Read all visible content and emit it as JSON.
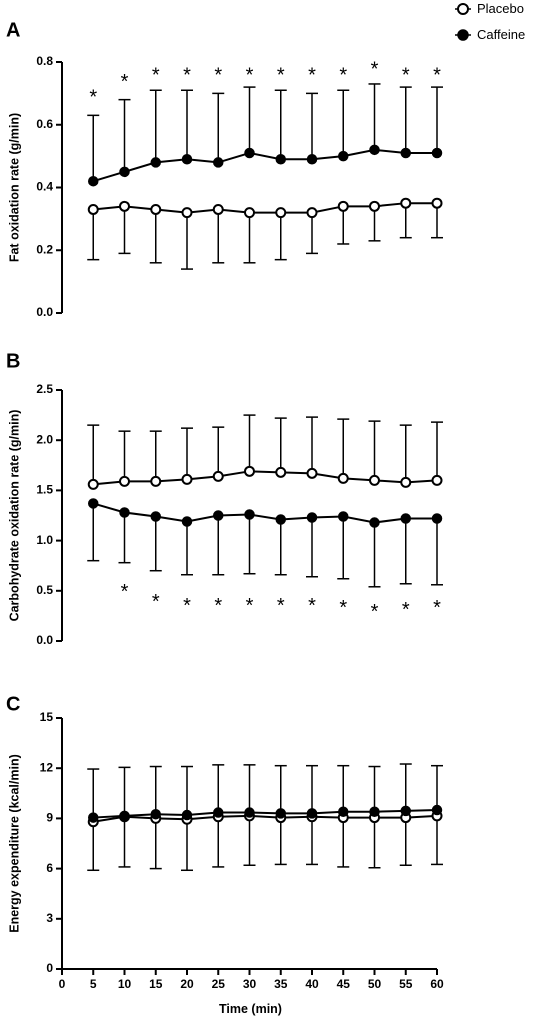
{
  "legend": [
    {
      "name": "Placebo",
      "marker": "open-circle"
    },
    {
      "name": "Caffeine",
      "marker": "filled-circle"
    }
  ],
  "colors": {
    "ink": "#000000",
    "background": "#ffffff",
    "open_marker_fill": "#ffffff"
  },
  "significance_marker": "*",
  "chart_data": [
    {
      "panel": "A",
      "type": "line",
      "ylabel": "Fat oxidation rate (g/min)",
      "xlabel": "",
      "ylim": [
        0,
        0.8
      ],
      "yticks": [
        0.0,
        0.2,
        0.4,
        0.6,
        0.8
      ],
      "ytick_labels": [
        "0.0",
        "0.2",
        "0.4",
        "0.6",
        "0.8"
      ],
      "x": [
        5,
        10,
        15,
        20,
        25,
        30,
        35,
        40,
        45,
        50,
        55,
        60
      ],
      "series": [
        {
          "name": "Placebo",
          "marker": "open-circle",
          "values": [
            0.33,
            0.34,
            0.33,
            0.32,
            0.33,
            0.32,
            0.32,
            0.32,
            0.34,
            0.34,
            0.35,
            0.35
          ],
          "error_lower": [
            0.17,
            0.19,
            0.16,
            0.14,
            0.16,
            0.16,
            0.17,
            0.19,
            0.22,
            0.23,
            0.24,
            0.24
          ]
        },
        {
          "name": "Caffeine",
          "marker": "filled-circle",
          "values": [
            0.42,
            0.45,
            0.48,
            0.49,
            0.48,
            0.51,
            0.49,
            0.49,
            0.5,
            0.52,
            0.51,
            0.51
          ],
          "error_upper": [
            0.63,
            0.68,
            0.71,
            0.71,
            0.7,
            0.72,
            0.71,
            0.7,
            0.71,
            0.73,
            0.72,
            0.72
          ]
        }
      ],
      "significance": {
        "x": [
          5,
          10,
          15,
          20,
          25,
          30,
          35,
          40,
          45,
          50,
          55,
          60
        ],
        "position": "above",
        "at": [
          0.69,
          0.74,
          0.76,
          0.76,
          0.76,
          0.76,
          0.76,
          0.76,
          0.76,
          0.78,
          0.76,
          0.76
        ]
      }
    },
    {
      "panel": "B",
      "type": "line",
      "ylabel": "Carbohydrate oxidation rate (g/min)",
      "xlabel": "",
      "ylim": [
        0,
        2.5
      ],
      "yticks": [
        0.0,
        0.5,
        1.0,
        1.5,
        2.0,
        2.5
      ],
      "ytick_labels": [
        "0.0",
        "0.5",
        "1.0",
        "1.5",
        "2.0",
        "2.5"
      ],
      "x": [
        5,
        10,
        15,
        20,
        25,
        30,
        35,
        40,
        45,
        50,
        55,
        60
      ],
      "series": [
        {
          "name": "Placebo",
          "marker": "open-circle",
          "values": [
            1.56,
            1.59,
            1.59,
            1.61,
            1.64,
            1.69,
            1.68,
            1.67,
            1.62,
            1.6,
            1.58,
            1.6
          ],
          "error_upper": [
            2.15,
            2.09,
            2.09,
            2.12,
            2.13,
            2.25,
            2.22,
            2.23,
            2.21,
            2.19,
            2.15,
            2.18
          ]
        },
        {
          "name": "Caffeine",
          "marker": "filled-circle",
          "values": [
            1.37,
            1.28,
            1.24,
            1.19,
            1.25,
            1.26,
            1.21,
            1.23,
            1.24,
            1.18,
            1.22,
            1.22
          ],
          "error_lower": [
            0.8,
            0.78,
            0.7,
            0.66,
            0.66,
            0.67,
            0.66,
            0.64,
            0.62,
            0.54,
            0.57,
            0.56
          ]
        }
      ],
      "significance": {
        "x": [
          10,
          15,
          20,
          25,
          30,
          35,
          40,
          45,
          50,
          55,
          60
        ],
        "position": "below",
        "at": [
          0.5,
          0.4,
          0.36,
          0.36,
          0.36,
          0.36,
          0.36,
          0.34,
          0.3,
          0.32,
          0.34
        ]
      }
    },
    {
      "panel": "C",
      "type": "line",
      "ylabel": "Energy expenditure (kcal/min)",
      "xlabel": "Time (min)",
      "ylim": [
        0,
        15
      ],
      "yticks": [
        0,
        3,
        6,
        9,
        12,
        15
      ],
      "ytick_labels": [
        "0",
        "3",
        "6",
        "9",
        "12",
        "15"
      ],
      "xlim": [
        0,
        60
      ],
      "xticks": [
        0,
        5,
        10,
        15,
        20,
        25,
        30,
        35,
        40,
        45,
        50,
        55,
        60
      ],
      "xtick_labels": [
        "0",
        "5",
        "10",
        "15",
        "20",
        "25",
        "30",
        "35",
        "40",
        "45",
        "50",
        "55",
        "60"
      ],
      "x": [
        5,
        10,
        15,
        20,
        25,
        30,
        35,
        40,
        45,
        50,
        55,
        60
      ],
      "series": [
        {
          "name": "Placebo",
          "marker": "open-circle",
          "values": [
            8.8,
            9.1,
            9.0,
            8.95,
            9.1,
            9.15,
            9.05,
            9.1,
            9.05,
            9.05,
            9.05,
            9.15
          ],
          "error_lower": [
            5.9,
            6.1,
            6.0,
            5.9,
            6.1,
            6.2,
            6.25,
            6.25,
            6.1,
            6.05,
            6.2,
            6.25
          ]
        },
        {
          "name": "Caffeine",
          "marker": "filled-circle",
          "values": [
            9.05,
            9.15,
            9.25,
            9.2,
            9.35,
            9.35,
            9.3,
            9.3,
            9.4,
            9.4,
            9.45,
            9.5
          ],
          "error_upper": [
            11.95,
            12.05,
            12.1,
            12.1,
            12.2,
            12.2,
            12.15,
            12.15,
            12.15,
            12.1,
            12.25,
            12.15
          ]
        }
      ]
    }
  ]
}
